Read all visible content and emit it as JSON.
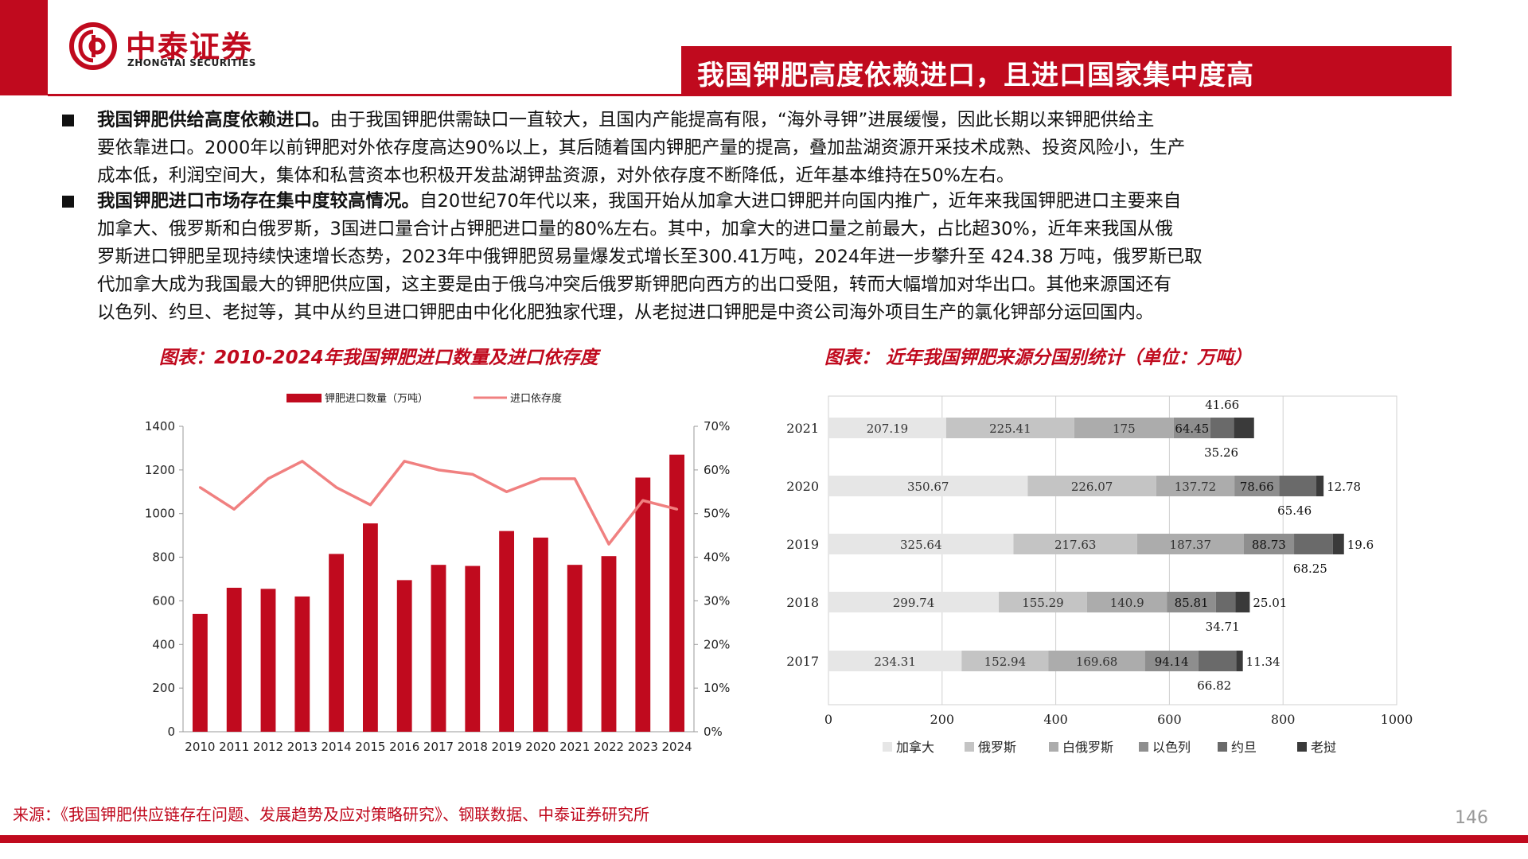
{
  "brand": {
    "name_cn": "中泰证券",
    "name_en": "ZHONGTAI SECURITIES",
    "color": "#c00a1e"
  },
  "slide_title": "我国钾肥高度依赖进口，且进口国家集中度高",
  "bullets": [
    {
      "bold": "我国钾肥供给高度依赖进口。",
      "lines": [
        "由于我国钾肥供需缺口一直较大，且国内产能提高有限，“海外寻钾”进展缓慢，因此长期以来钾肥供给主",
        "要依靠进口。2000年以前钾肥对外依存度高达90%以上，其后随着国内钾肥产量的提高，叠加盐湖资源开采技术成熟、投资风险小，生产",
        "成本低，利润空间大，集体和私营资本也积极开发盐湖钾盐资源，对外依存度不断降低，近年基本维持在50%左右。"
      ]
    },
    {
      "bold": "我国钾肥进口市场存在集中度较高情况。",
      "lines": [
        "自20世纪70年代以来，我国开始从加拿大进口钾肥并向国内推广，近年来我国钾肥进口主要来自",
        "加拿大、俄罗斯和白俄罗斯，3国进口量合计占钾肥进口量的80%左右。其中，加拿大的进口量之前最大，占比超30%，近年来我国从俄",
        "罗斯进口钾肥呈现持续快速增长态势，2023年中俄钾肥贸易量爆发式增长至300.41万吨，2024年进一步攀升至 424.38 万吨，俄罗斯已取",
        "代加拿大成为我国最大的钾肥供应国，这主要是由于俄乌冲突后俄罗斯钾肥向西方的出口受阻，转而大幅增加对华出口。其他来源国还有",
        "以色列、约旦、老挝等，其中从约旦进口钾肥由中化化肥独家代理，从老挝进口钾肥是中资公司海外项目生产的氯化钾部分运回国内。"
      ]
    }
  ],
  "source": "来源：《我国钾肥供应链存在问题、发展趋势及应对策略研究》、钢联数据、中泰证券研究所",
  "page_number": "146",
  "chart_data": [
    {
      "type": "bar",
      "title": "图表：2010-2024年我国钾肥进口数量及进口依存度",
      "categories": [
        "2010",
        "2011",
        "2012",
        "2013",
        "2014",
        "2015",
        "2016",
        "2017",
        "2018",
        "2019",
        "2020",
        "2021",
        "2022",
        "2023",
        "2024"
      ],
      "series": [
        {
          "name": "钾肥进口数量（万吨）",
          "type": "bar",
          "axis": "left",
          "color": "#c00a1e",
          "values": [
            540,
            660,
            655,
            620,
            815,
            955,
            695,
            765,
            760,
            920,
            890,
            765,
            805,
            1165,
            1270
          ]
        },
        {
          "name": "进口依存度",
          "type": "line",
          "axis": "right",
          "color": "#f08080",
          "values": [
            56,
            51,
            58,
            62,
            56,
            52,
            62,
            60,
            59,
            55,
            58,
            58,
            43,
            53,
            51
          ]
        }
      ],
      "y_left": {
        "ticks": [
          "0",
          "200",
          "400",
          "600",
          "800",
          "1000",
          "1200",
          "1400"
        ],
        "min": 0,
        "max": 1400
      },
      "y_right": {
        "ticks": [
          "0%",
          "10%",
          "20%",
          "30%",
          "40%",
          "50%",
          "60%",
          "70%"
        ],
        "min": 0,
        "max": 70
      },
      "legend_position": "top"
    },
    {
      "type": "bar",
      "orientation": "horizontal",
      "stacked": true,
      "title": "图表： 近年我国钾肥来源分国别统计（单位：万吨）",
      "categories": [
        "2021",
        "2020",
        "2019",
        "2018",
        "2017"
      ],
      "series": [
        {
          "name": "加拿大",
          "color": "#e6e6e6",
          "values": [
            207.19,
            350.67,
            325.64,
            299.74,
            234.31
          ]
        },
        {
          "name": "俄罗斯",
          "color": "#c4c4c4",
          "values": [
            225.41,
            226.07,
            217.63,
            155.29,
            152.94
          ]
        },
        {
          "name": "白俄罗斯",
          "color": "#acacac",
          "values": [
            175,
            137.72,
            187.37,
            140.9,
            169.68
          ]
        },
        {
          "name": "以色列",
          "color": "#8e8e8e",
          "values": [
            64.45,
            78.66,
            88.73,
            85.81,
            94.14
          ]
        },
        {
          "name": "约旦",
          "color": "#6a6a6a",
          "values": [
            41.66,
            65.46,
            68.25,
            34.71,
            66.82
          ]
        },
        {
          "name": "老挝",
          "color": "#3a3a3a",
          "values": [
            35.26,
            12.78,
            19.6,
            25.01,
            11.34
          ]
        }
      ],
      "label_text": [
        [
          "207.19",
          "350.67",
          "325.64",
          "299.74",
          "234.31"
        ],
        [
          "225.41",
          "226.07",
          "217.63",
          "155.29",
          "152.94"
        ],
        [
          "175",
          "137.72",
          "187.37",
          "140.9",
          "169.68"
        ],
        [
          "64.45",
          "78.66",
          "88.73",
          "85.81",
          "94.14"
        ],
        [
          "41.66",
          "65.46",
          "68.25",
          "34.71",
          "66.82"
        ],
        [
          "35.26",
          "12.78",
          "19.6",
          "25.01",
          "11.34"
        ]
      ],
      "x_axis": {
        "ticks": [
          "0",
          "200",
          "400",
          "600",
          "800",
          "1000"
        ],
        "min": 0,
        "max": 1000
      },
      "grid": true,
      "legend_position": "bottom"
    }
  ]
}
